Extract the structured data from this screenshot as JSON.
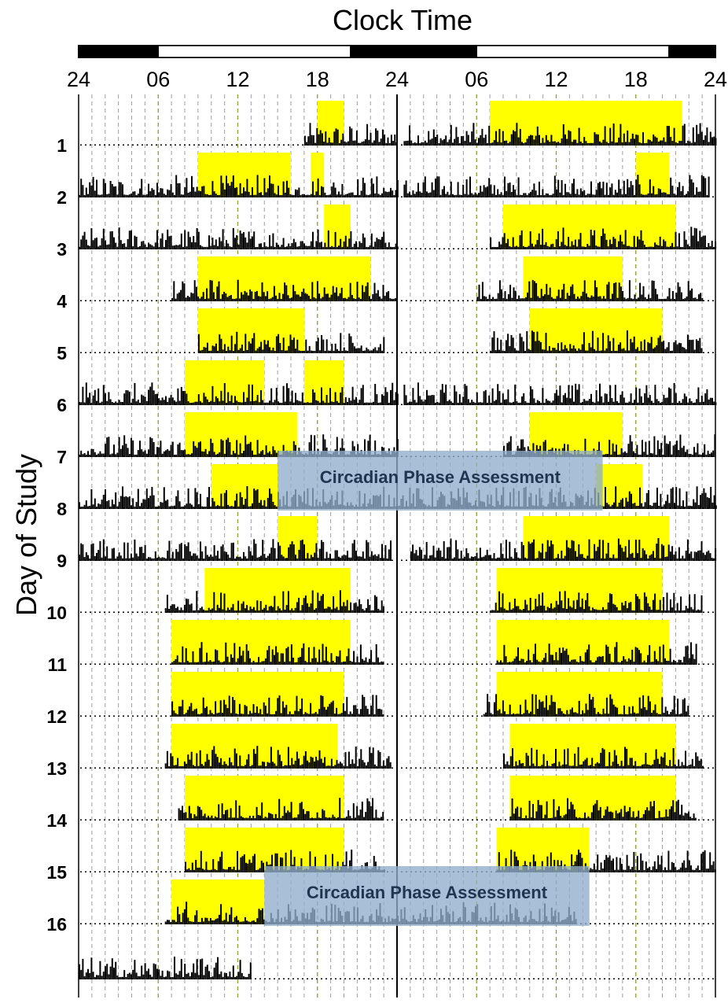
{
  "chart_data": {
    "type": "actogram",
    "title": "Clock Time",
    "ylabel": "Day of Study",
    "x_tick_labels": [
      "24",
      "06",
      "12",
      "18",
      "24",
      "06",
      "12",
      "18",
      "24"
    ],
    "x_range_hours": [
      0,
      48
    ],
    "day_labels": [
      "1",
      "2",
      "3",
      "4",
      "5",
      "6",
      "7",
      "8",
      "9",
      "10",
      "11",
      "12",
      "13",
      "14",
      "15",
      "16"
    ],
    "light_dark_bar": [
      {
        "start": 0,
        "end": 6,
        "state": "dark"
      },
      {
        "start": 6,
        "end": 20.5,
        "state": "light"
      },
      {
        "start": 20.5,
        "end": 30,
        "state": "dark"
      },
      {
        "start": 30,
        "end": 44.5,
        "state": "light"
      },
      {
        "start": 44.5,
        "end": 48,
        "state": "dark"
      }
    ],
    "rows": [
      {
        "day": "1",
        "activity": [
          [
            17,
            24
          ],
          [
            24.5,
            48
          ]
        ],
        "light": [
          [
            18,
            20
          ],
          [
            31,
            45.5
          ]
        ]
      },
      {
        "day": "2",
        "activity": [
          [
            0,
            24
          ],
          [
            24.5,
            47.5
          ]
        ],
        "light": [
          [
            9,
            16
          ],
          [
            17.5,
            18.5
          ],
          [
            42,
            44.5
          ]
        ]
      },
      {
        "day": "3",
        "activity": [
          [
            0,
            24
          ],
          [
            31,
            48
          ]
        ],
        "light": [
          [
            18.5,
            20.5
          ],
          [
            32,
            45
          ]
        ]
      },
      {
        "day": "4",
        "activity": [
          [
            7,
            24
          ],
          [
            30,
            47
          ]
        ],
        "light": [
          [
            9,
            22
          ],
          [
            33.5,
            41
          ]
        ]
      },
      {
        "day": "5",
        "activity": [
          [
            9,
            23
          ],
          [
            31,
            47
          ]
        ],
        "light": [
          [
            9,
            17
          ],
          [
            34,
            44
          ]
        ]
      },
      {
        "day": "6",
        "activity": [
          [
            0,
            24
          ],
          [
            24.5,
            48
          ]
        ],
        "light": [
          [
            8,
            14
          ],
          [
            17,
            20
          ]
        ]
      },
      {
        "day": "7",
        "activity": [
          [
            0,
            24
          ],
          [
            32,
            48
          ]
        ],
        "light": [
          [
            8,
            16.5
          ],
          [
            34,
            41
          ]
        ]
      },
      {
        "day": "8",
        "activity": [
          [
            0,
            24
          ],
          [
            24,
            48
          ]
        ],
        "light": [
          [
            10,
            15
          ],
          [
            39,
            42.5
          ]
        ]
      },
      {
        "day": "9",
        "activity": [
          [
            0,
            23.5
          ],
          [
            25,
            48
          ]
        ],
        "light": [
          [
            15,
            18
          ],
          [
            33.5,
            44.5
          ]
        ]
      },
      {
        "day": "10",
        "activity": [
          [
            6.5,
            23
          ],
          [
            31,
            47
          ]
        ],
        "light": [
          [
            9.5,
            20.5
          ],
          [
            31.5,
            44
          ]
        ]
      },
      {
        "day": "11",
        "activity": [
          [
            7,
            23
          ],
          [
            31.5,
            46.5
          ]
        ],
        "light": [
          [
            7,
            20.5
          ],
          [
            31.5,
            44.5
          ]
        ]
      },
      {
        "day": "12",
        "activity": [
          [
            7,
            23
          ],
          [
            30.5,
            46
          ]
        ],
        "light": [
          [
            7,
            20
          ],
          [
            31.5,
            44
          ]
        ]
      },
      {
        "day": "13",
        "activity": [
          [
            6.5,
            23.5
          ],
          [
            32,
            47
          ]
        ],
        "light": [
          [
            7,
            19.5
          ],
          [
            32.5,
            45
          ]
        ]
      },
      {
        "day": "14",
        "activity": [
          [
            7.5,
            23
          ],
          [
            32.5,
            46.5
          ]
        ],
        "light": [
          [
            8,
            20
          ],
          [
            32.5,
            45
          ]
        ]
      },
      {
        "day": "15",
        "activity": [
          [
            8,
            23
          ],
          [
            31.5,
            48
          ]
        ],
        "light": [
          [
            8,
            20
          ],
          [
            31.5,
            38.5
          ]
        ]
      },
      {
        "day": "16",
        "activity": [
          [
            6.5,
            24
          ],
          [
            24,
            37.5
          ]
        ],
        "light": [
          [
            7,
            14
          ]
        ]
      },
      {
        "day": "",
        "activity": [
          [
            0,
            13
          ]
        ],
        "light": []
      }
    ],
    "annotations": [
      {
        "text": "Circadian Phase Assessment",
        "start_hour": 15,
        "end_hour": 39.5,
        "row": "8"
      },
      {
        "text": "Circadian Phase Assessment",
        "start_hour": 14,
        "end_hour": 38.5,
        "row": "16"
      }
    ],
    "colors": {
      "activity": "#000000",
      "light": "#ffff00",
      "assessment": "#8fadcc",
      "grid": "#9e9e9e",
      "grid_dawn": "#8f9d32"
    }
  }
}
